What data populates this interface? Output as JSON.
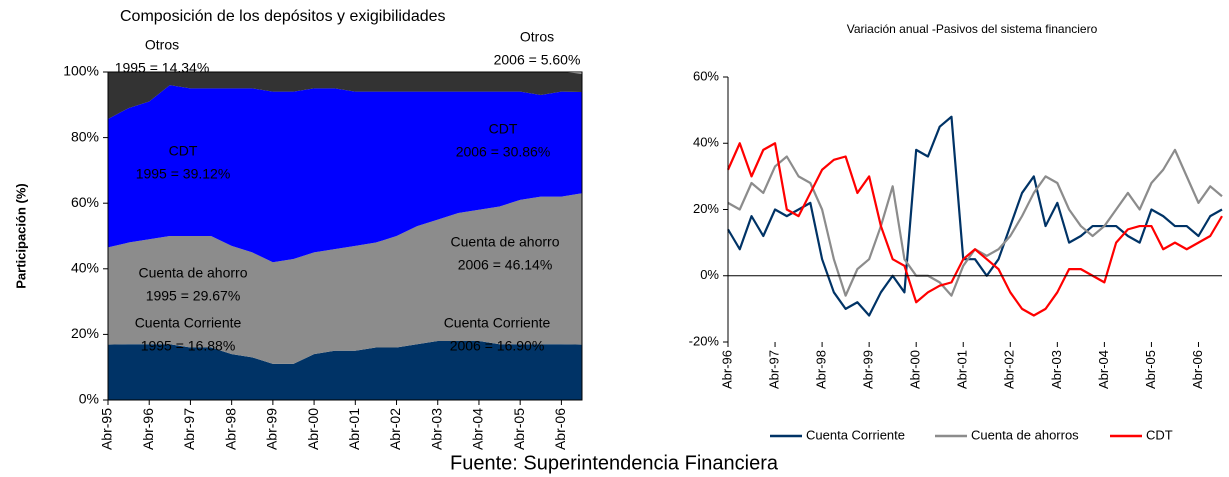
{
  "chart_data": [
    {
      "type": "area",
      "title": "Composición de los depósitos y exigibilidades",
      "y_label": "Participación (%)",
      "categories": [
        "Abr-95",
        null,
        "Abr-96",
        null,
        "Abr-97",
        null,
        "Abr-98",
        null,
        "Abr-99",
        null,
        "Abr-00",
        null,
        "Abr-01",
        null,
        "Abr-02",
        null,
        "Abr-03",
        null,
        "Abr-04",
        null,
        "Abr-05",
        null,
        "Abr-06",
        null
      ],
      "series": [
        {
          "name": "Cuenta Corriente",
          "color": "#003366",
          "values": [
            16.88,
            17,
            17,
            17,
            16,
            16,
            14,
            13,
            11,
            11,
            14,
            15,
            15,
            16,
            16,
            17,
            18,
            18,
            18,
            17,
            17,
            17,
            17,
            16.9
          ]
        },
        {
          "name": "Cuenta de ahorro",
          "color": "#8c8c8c",
          "values": [
            29.67,
            31,
            32,
            33,
            34,
            34,
            33,
            32,
            31,
            32,
            31,
            31,
            32,
            32,
            34,
            36,
            37,
            39,
            40,
            42,
            44,
            45,
            45,
            46.14
          ]
        },
        {
          "name": "CDT",
          "color": "#0000ff",
          "values": [
            39.12,
            41,
            42,
            46,
            45,
            45,
            48,
            50,
            52,
            51,
            50,
            49,
            47,
            46,
            44,
            41,
            39,
            37,
            36,
            35,
            33,
            31,
            32,
            30.86
          ]
        },
        {
          "name": "Otros",
          "color": "#333333",
          "values": [
            14.34,
            11,
            9,
            4,
            5,
            5,
            5,
            5,
            6,
            6,
            5,
            5,
            6,
            6,
            6,
            6,
            6,
            6,
            6,
            6,
            6,
            7,
            6,
            5.6
          ]
        }
      ],
      "annotations": [
        "1995 = 16.88%",
        "2006 = 16.90%",
        "1995 = 29.67%",
        "2006 = 46.14%",
        "1995 = 39.12%",
        "2006 = 30.86%",
        "1995 = 14.34%",
        "2006 = 5.60%"
      ],
      "ylim": [
        0,
        100
      ],
      "yticks": [
        {
          "value": 0,
          "label": "0%"
        },
        {
          "value": 20,
          "label": "20%"
        },
        {
          "value": 40,
          "label": "40%"
        },
        {
          "value": 60,
          "label": "60%"
        },
        {
          "value": 80,
          "label": "80%"
        },
        {
          "value": 100,
          "label": "100%"
        }
      ],
      "stacked": true,
      "grid": false,
      "legend": false
    },
    {
      "type": "line",
      "title": "Variación anual -Pasivos del sistema financiero",
      "categories": [
        "Abr-96",
        null,
        null,
        null,
        "Abr-97",
        null,
        null,
        null,
        "Abr-98",
        null,
        null,
        null,
        "Abr-99",
        null,
        null,
        null,
        "Abr-00",
        null,
        null,
        null,
        "Abr-01",
        null,
        null,
        null,
        "Abr-02",
        null,
        null,
        null,
        "Abr-03",
        null,
        null,
        null,
        "Abr-04",
        null,
        null,
        null,
        "Abr-05",
        null,
        null,
        null,
        "Abr-06",
        null,
        null
      ],
      "series": [
        {
          "name": "Cuenta Corriente",
          "color": "#003366",
          "values": [
            14,
            8,
            18,
            12,
            20,
            18,
            20,
            22,
            5,
            -5,
            -10,
            -8,
            -12,
            -5,
            0,
            -5,
            38,
            36,
            45,
            48,
            5,
            5,
            0,
            5,
            15,
            25,
            30,
            15,
            22,
            10,
            12,
            15,
            15,
            15,
            12,
            10,
            20,
            18,
            15,
            15,
            12,
            18,
            20
          ]
        },
        {
          "name": "Cuenta de ahorros",
          "color": "#8c8c8c",
          "values": [
            22,
            20,
            28,
            25,
            33,
            36,
            30,
            28,
            20,
            5,
            -6,
            2,
            5,
            15,
            27,
            5,
            0,
            0,
            -2,
            -6,
            3,
            8,
            6,
            8,
            12,
            18,
            25,
            30,
            28,
            20,
            15,
            12,
            15,
            20,
            25,
            20,
            28,
            32,
            38,
            30,
            22,
            27,
            24
          ]
        },
        {
          "name": "CDT",
          "color": "#ff0000",
          "values": [
            32,
            40,
            30,
            38,
            40,
            20,
            18,
            25,
            32,
            35,
            36,
            25,
            30,
            15,
            5,
            3,
            -8,
            -5,
            -3,
            -2,
            5,
            8,
            5,
            2,
            -5,
            -10,
            -12,
            -10,
            -5,
            2,
            2,
            0,
            -2,
            10,
            14,
            15,
            15,
            8,
            10,
            8,
            10,
            12,
            18
          ]
        }
      ],
      "ylim": [
        -20,
        60
      ],
      "yticks": [
        {
          "value": -20,
          "label": "-20%"
        },
        {
          "value": 0,
          "label": "0%"
        },
        {
          "value": 20,
          "label": "20%"
        },
        {
          "value": 40,
          "label": "40%"
        },
        {
          "value": 60,
          "label": "60%"
        }
      ],
      "grid": false,
      "legend": "bottom"
    }
  ],
  "footer": "Fuente: Superintendencia Financiera"
}
